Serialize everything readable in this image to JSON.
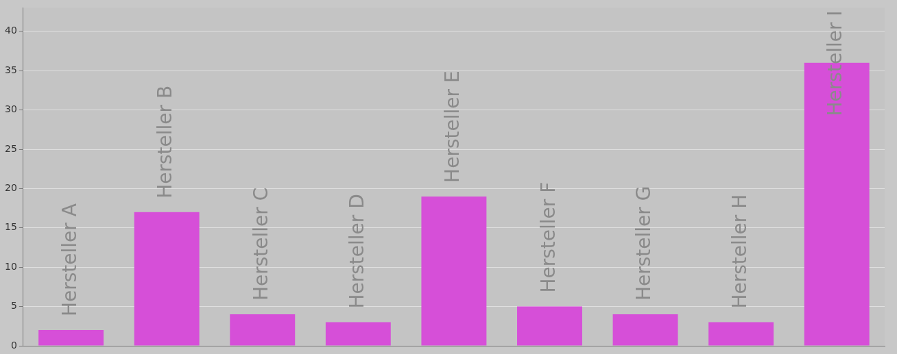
{
  "chart_data": {
    "type": "bar",
    "categories": [
      "Hersteller A",
      "Hersteller B",
      "Hersteller C",
      "Hersteller D",
      "Hersteller E",
      "Hersteller F",
      "Hersteller G",
      "Hersteller H",
      "Hersteller I"
    ],
    "values": [
      2,
      17,
      4,
      3,
      19,
      5,
      4,
      3,
      36
    ],
    "color": "#d64fd8",
    "ylim": [
      0,
      43
    ],
    "yticks": [
      0,
      5,
      10,
      15,
      20,
      25,
      30,
      35,
      40
    ],
    "grid": "y",
    "legend": false
  }
}
